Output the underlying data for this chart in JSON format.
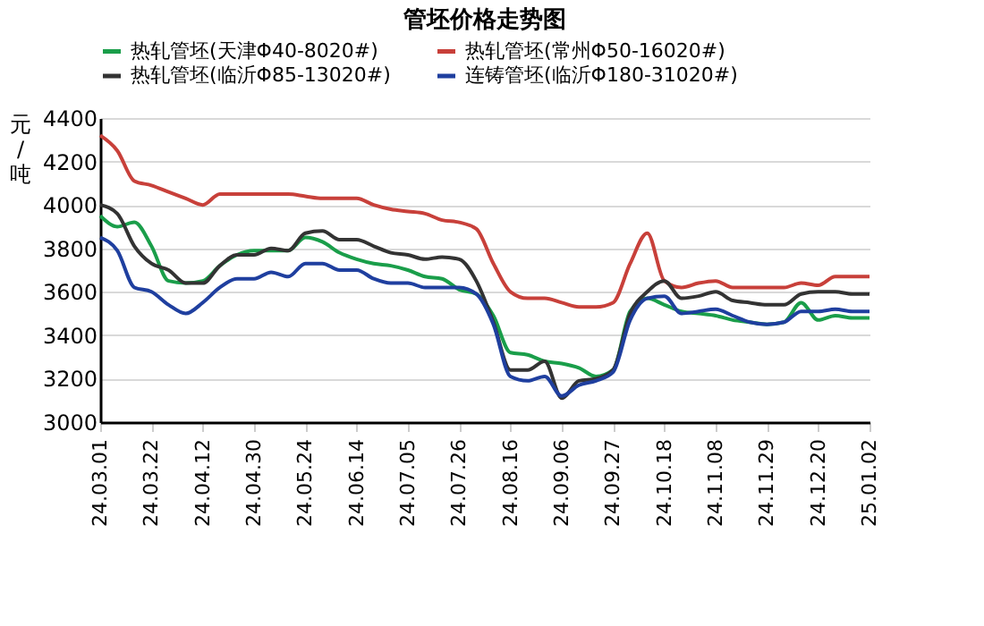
{
  "chart_data": {
    "type": "line",
    "title": "管坯价格走势图",
    "ylabel": "元/吨",
    "categories": [
      "24.03.01",
      null,
      null,
      "24.03.22",
      null,
      null,
      "24.04.12",
      null,
      null,
      "24.04.30",
      null,
      null,
      "24.05.24",
      null,
      null,
      "24.06.14",
      null,
      null,
      "24.07.05",
      null,
      null,
      "24.07.26",
      null,
      null,
      "24.08.16",
      null,
      null,
      "24.09.06",
      null,
      null,
      "24.09.27",
      null,
      null,
      "24.10.18",
      null,
      null,
      "24.11.08",
      null,
      null,
      "24.11.29",
      null,
      null,
      "24.12.20",
      null,
      null,
      "25.01.02"
    ],
    "series": [
      {
        "name": "热轧管坯(天津Φ40-8020#)",
        "color": "#1a9e4a",
        "values": [
          3950,
          3900,
          3920,
          3810,
          3650,
          3640,
          3650,
          3720,
          3770,
          3790,
          3790,
          3790,
          3850,
          3830,
          3780,
          3750,
          3730,
          3720,
          3700,
          3670,
          3660,
          3610,
          3590,
          3490,
          3320,
          3310,
          3280,
          3270,
          3250,
          3210,
          3240,
          3510,
          3570,
          3540,
          3510,
          3500,
          3490,
          3470,
          3460,
          3450,
          3460,
          3550,
          3470,
          3490,
          3480,
          3480
        ]
      },
      {
        "name": "热轧管坯(常州Φ50-16020#)",
        "color": "#c8403a",
        "values": [
          4320,
          4250,
          4110,
          4090,
          4060,
          4030,
          4000,
          4050,
          4050,
          4050,
          4050,
          4050,
          4040,
          4030,
          4030,
          4030,
          4000,
          3980,
          3970,
          3960,
          3930,
          3920,
          3890,
          3730,
          3600,
          3570,
          3570,
          3550,
          3530,
          3530,
          3550,
          3730,
          3870,
          3650,
          3620,
          3640,
          3650,
          3620,
          3620,
          3620,
          3620,
          3640,
          3630,
          3670,
          3670,
          3670
        ]
      },
      {
        "name": "热轧管坯(临沂Φ85-13020#)",
        "color": "#333333",
        "values": [
          4000,
          3960,
          3810,
          3730,
          3700,
          3640,
          3640,
          3720,
          3770,
          3770,
          3800,
          3790,
          3870,
          3880,
          3840,
          3840,
          3810,
          3780,
          3770,
          3750,
          3760,
          3750,
          3650,
          3460,
          3240,
          3240,
          3280,
          3110,
          3190,
          3200,
          3240,
          3500,
          3600,
          3650,
          3570,
          3580,
          3600,
          3560,
          3550,
          3540,
          3540,
          3590,
          3600,
          3600,
          3590,
          3590
        ]
      },
      {
        "name": "连铸管坯(临沂Φ180-31020#)",
        "color": "#1f3f9f",
        "values": [
          3850,
          3790,
          3620,
          3600,
          3540,
          3500,
          3550,
          3620,
          3660,
          3660,
          3690,
          3670,
          3730,
          3730,
          3700,
          3700,
          3660,
          3640,
          3640,
          3620,
          3620,
          3620,
          3590,
          3450,
          3210,
          3190,
          3210,
          3120,
          3170,
          3190,
          3230,
          3470,
          3570,
          3580,
          3500,
          3510,
          3520,
          3490,
          3460,
          3450,
          3460,
          3510,
          3510,
          3520,
          3510,
          3510
        ]
      }
    ],
    "ylim": [
      3000,
      4400
    ],
    "yticks": [
      3000,
      3200,
      3400,
      3600,
      3800,
      4000,
      4200,
      4400
    ],
    "grid": "y",
    "legend": "top",
    "line_style": "solid",
    "marker": "none"
  }
}
